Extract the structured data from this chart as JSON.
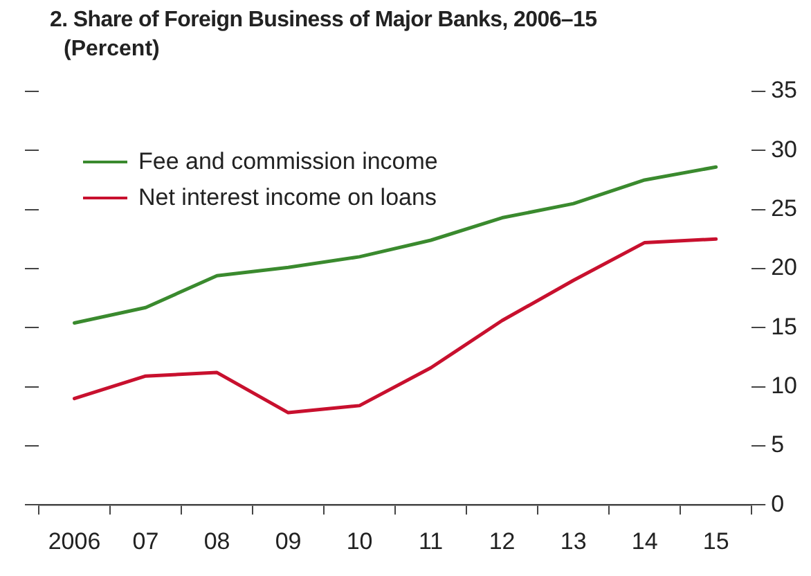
{
  "chart_data": {
    "type": "line",
    "title": "2. Share of Foreign Business of Major Banks, 2006–15",
    "subtitle": "(Percent)",
    "categories": [
      "2006",
      "07",
      "08",
      "09",
      "10",
      "11",
      "12",
      "13",
      "14",
      "15"
    ],
    "series": [
      {
        "name": "Fee and commission income",
        "color": "#3a8a2e",
        "values": [
          15.4,
          16.7,
          19.4,
          20.1,
          21.0,
          22.4,
          24.3,
          25.5,
          27.5,
          28.6
        ]
      },
      {
        "name": "Net interest income on loans",
        "color": "#c8102e",
        "values": [
          9.0,
          10.9,
          11.2,
          7.8,
          8.4,
          11.6,
          15.6,
          19.0,
          22.2,
          22.5
        ]
      }
    ],
    "ylim": [
      0,
      35
    ],
    "yticks": [
      0,
      5,
      10,
      15,
      20,
      25,
      30,
      35
    ],
    "grid": false,
    "legend": "top left",
    "marker": "none",
    "line_style": "solid"
  }
}
